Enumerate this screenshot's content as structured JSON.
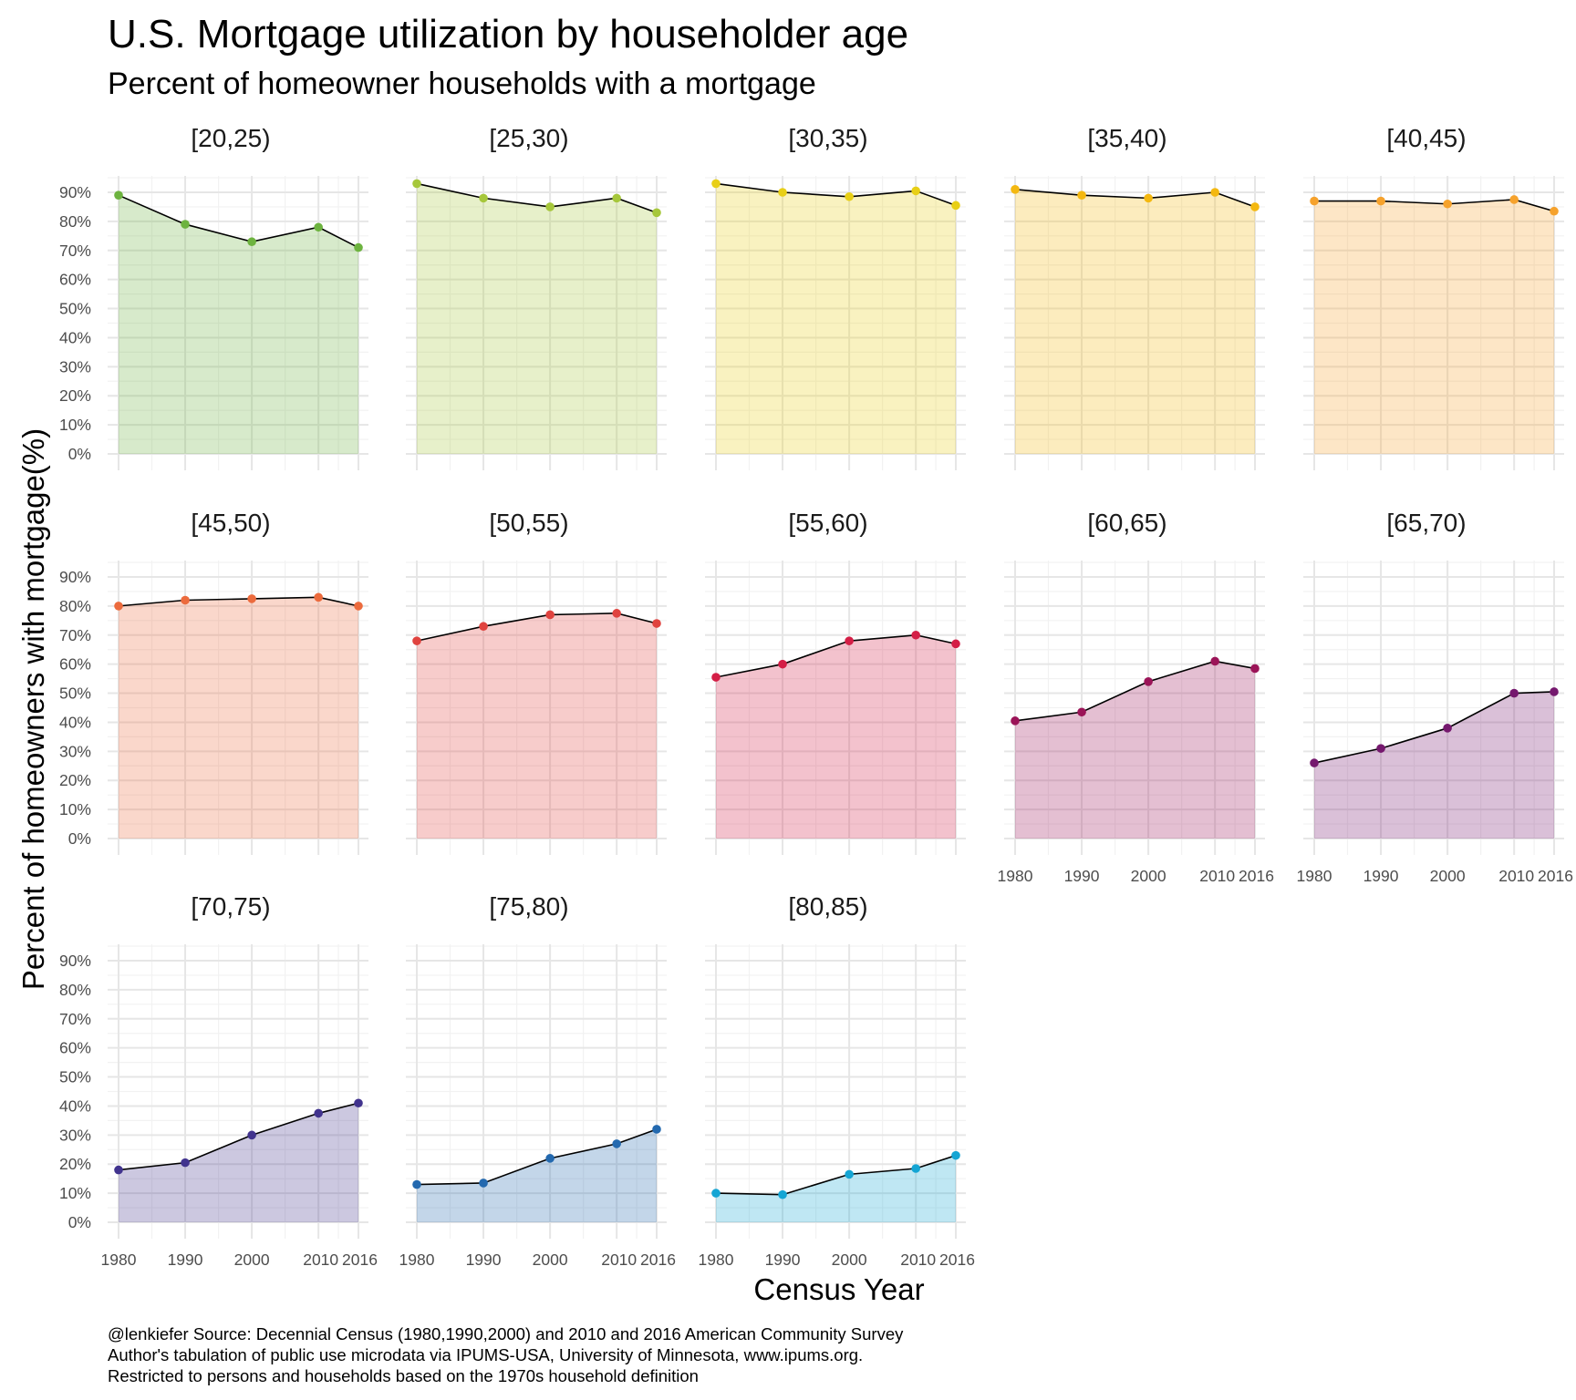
{
  "title": "U.S. Mortgage utilization by householder age",
  "subtitle": "Percent of homeowner households with a mortgage",
  "xlabel": "Census Year",
  "ylabel": "Percent of homeowners with mortgage(%)",
  "caption": [
    "@lenkiefer Source: Decennial Census (1980,1990,2000) and 2010 and 2016 American Community Survey",
    "Author's tabulation of public use microdata via IPUMS-USA, University of Minnesota, www.ipums.org.",
    "Restricted to persons and households based on the 1970s household definition"
  ],
  "chart_data": {
    "type": "area",
    "layout": "facet_wrap",
    "facet_columns": 5,
    "x": [
      1980,
      1990,
      2000,
      2010,
      2016
    ],
    "x_ticks": [
      "1980",
      "1990",
      "2000",
      "2010",
      "2016"
    ],
    "ylim": [
      0,
      90
    ],
    "y_ticks": [
      "0%",
      "10%",
      "20%",
      "30%",
      "40%",
      "50%",
      "60%",
      "70%",
      "80%",
      "90%"
    ],
    "y_tick_values": [
      0,
      10,
      20,
      30,
      40,
      50,
      60,
      70,
      80,
      90
    ],
    "grid": true,
    "line_color": "#000000",
    "series": [
      {
        "name": "[20,25)",
        "color": "#6db33f",
        "values": [
          89,
          79,
          73,
          78,
          71
        ]
      },
      {
        "name": "[25,30)",
        "color": "#a6c73b",
        "values": [
          93,
          88,
          85,
          88,
          83
        ]
      },
      {
        "name": "[30,35)",
        "color": "#e8cf16",
        "values": [
          93,
          90,
          88.5,
          90.5,
          85.5
        ]
      },
      {
        "name": "[35,40)",
        "color": "#f4b810",
        "values": [
          91,
          89,
          88,
          90,
          85
        ]
      },
      {
        "name": "[40,45)",
        "color": "#f6a22c",
        "values": [
          87,
          87,
          86,
          87.5,
          83.5
        ]
      },
      {
        "name": "[45,50)",
        "color": "#ec6b3d",
        "values": [
          80,
          82,
          82.5,
          83,
          80
        ]
      },
      {
        "name": "[50,55)",
        "color": "#e0433f",
        "values": [
          68,
          73,
          77,
          77.5,
          74
        ]
      },
      {
        "name": "[55,60)",
        "color": "#d41e46",
        "values": [
          55.5,
          60,
          68,
          70,
          67
        ]
      },
      {
        "name": "[60,65)",
        "color": "#9b1458",
        "values": [
          40.5,
          43.5,
          54,
          61,
          58.5
        ]
      },
      {
        "name": "[65,70)",
        "color": "#75186e",
        "values": [
          26,
          31,
          38,
          50,
          50.5
        ]
      },
      {
        "name": "[70,75)",
        "color": "#41338e",
        "values": [
          18,
          20.5,
          30,
          37.5,
          41
        ]
      },
      {
        "name": "[75,80)",
        "color": "#2369af",
        "values": [
          13,
          13.5,
          22,
          27,
          32
        ]
      },
      {
        "name": "[80,85)",
        "color": "#14a5d4",
        "values": [
          10,
          9.5,
          16.5,
          18.5,
          23
        ]
      }
    ]
  }
}
